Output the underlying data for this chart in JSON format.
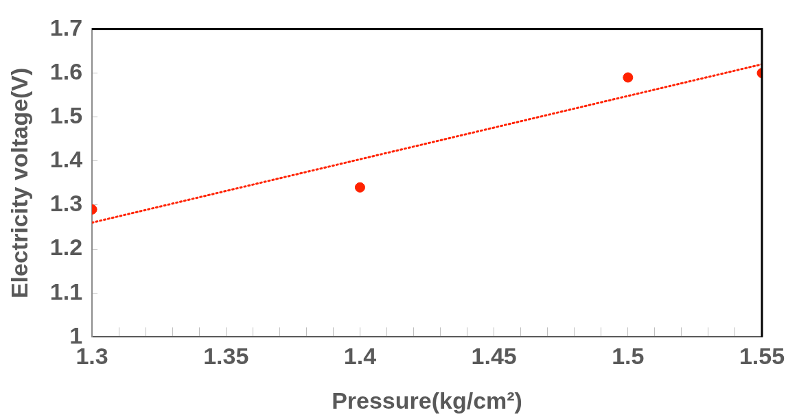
{
  "chart_data": {
    "type": "scatter",
    "xlabel": "Pressure(kg/cm²)",
    "ylabel": "Electricity voltage(V)",
    "series": [
      {
        "color": "#ff2200",
        "x": [
          1.3,
          1.4,
          1.5,
          1.55
        ],
        "values": [
          1.29,
          1.34,
          1.59,
          1.6
        ]
      },
      {
        "type": "line",
        "color": "#ff2200",
        "x": [
          1.3,
          1.55
        ],
        "values": [
          1.26,
          1.62
        ],
        "line_style": "dotted",
        "marker": "none"
      }
    ],
    "marker": "circle",
    "xlim": [
      1.3,
      1.55
    ],
    "xticks": [
      {
        "value": 1.3,
        "label": "1.3"
      },
      {
        "value": 1.31,
        "label": null
      },
      {
        "value": 1.32,
        "label": null
      },
      {
        "value": 1.33,
        "label": null
      },
      {
        "value": 1.34,
        "label": null
      },
      {
        "value": 1.35,
        "label": "1.35"
      },
      {
        "value": 1.36,
        "label": null
      },
      {
        "value": 1.37,
        "label": null
      },
      {
        "value": 1.38,
        "label": null
      },
      {
        "value": 1.39,
        "label": null
      },
      {
        "value": 1.4,
        "label": "1.4"
      },
      {
        "value": 1.41,
        "label": null
      },
      {
        "value": 1.42,
        "label": null
      },
      {
        "value": 1.43,
        "label": null
      },
      {
        "value": 1.44,
        "label": null
      },
      {
        "value": 1.45,
        "label": "1.45"
      },
      {
        "value": 1.46,
        "label": null
      },
      {
        "value": 1.47,
        "label": null
      },
      {
        "value": 1.48,
        "label": null
      },
      {
        "value": 1.49,
        "label": null
      },
      {
        "value": 1.5,
        "label": "1.5"
      },
      {
        "value": 1.51,
        "label": null
      },
      {
        "value": 1.52,
        "label": null
      },
      {
        "value": 1.53,
        "label": null
      },
      {
        "value": 1.54,
        "label": null
      },
      {
        "value": 1.55,
        "label": "1.55"
      }
    ],
    "ylim": [
      1,
      1.7
    ],
    "yticks": [
      1,
      1.1,
      1.2,
      1.3,
      1.4,
      1.5,
      1.6,
      1.7
    ],
    "grid": false,
    "legend": false
  }
}
